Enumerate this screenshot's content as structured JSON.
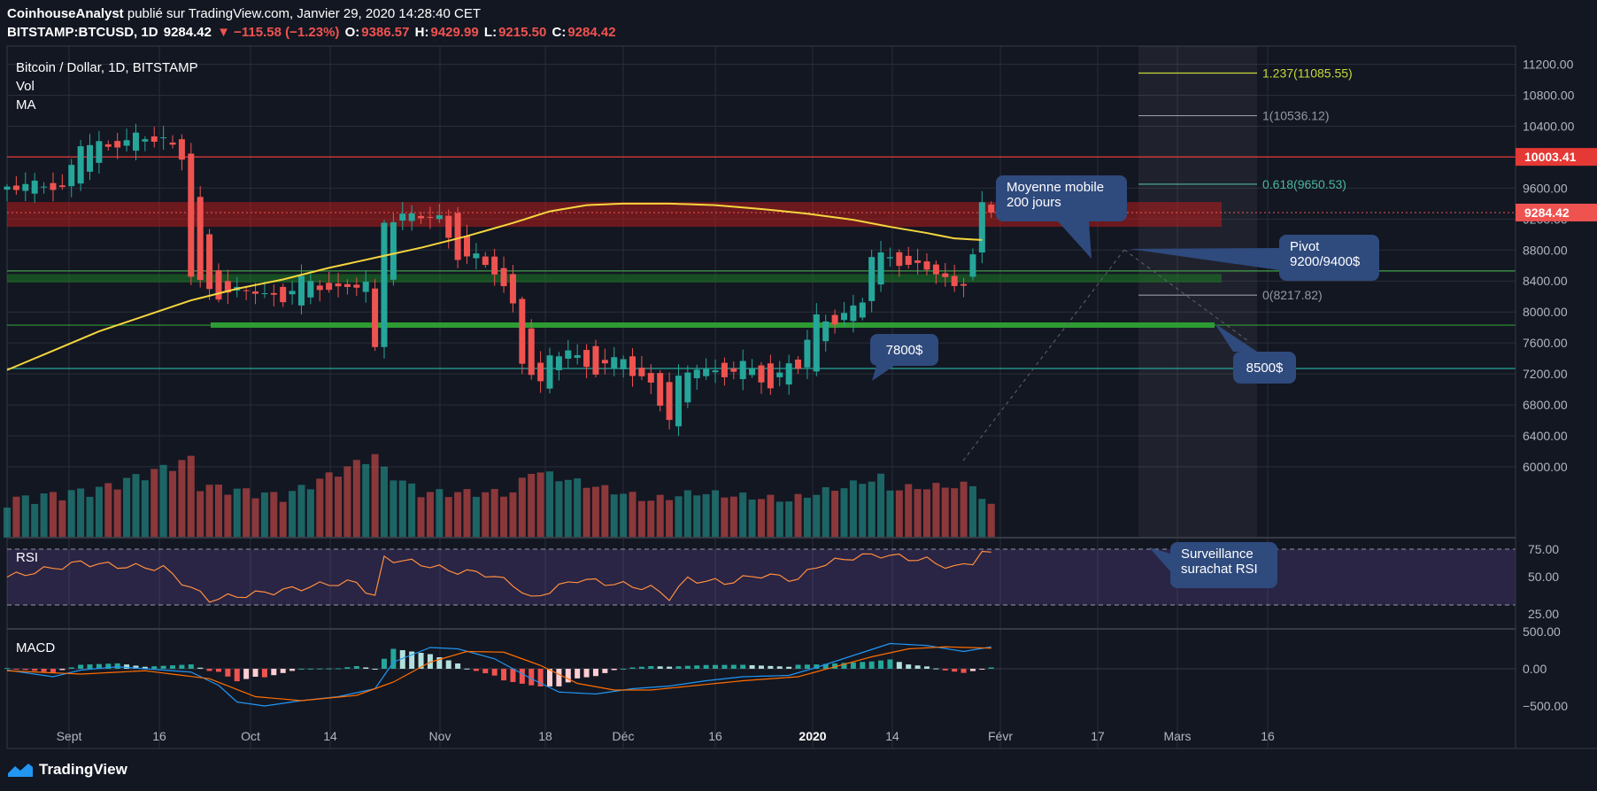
{
  "header": {
    "line1_author": "CoinhouseAnalyst",
    "line1_rest": " publié sur TradingView.com, Janvier 29, 2020 14:28:40 CET",
    "symbol": "BITSTAMP:BTCUSD, 1D",
    "last": "9284.42",
    "change": "▼ −115.58 (−1.23%)",
    "o_label": "O:",
    "o": "9386.57",
    "h_label": "H:",
    "h": "9429.99",
    "l_label": "L:",
    "l": "9215.50",
    "c_label": "C:",
    "c": "9284.42"
  },
  "legend": {
    "title": "Bitcoin / Dollar, 1D, BITSTAMP",
    "vol": "Vol",
    "ma": "MA",
    "rsi": "RSI",
    "macd": "MACD"
  },
  "footer": {
    "brand": "TradingView"
  },
  "colors": {
    "background": "#131722",
    "up": "#26a69a",
    "down": "#ef5350",
    "ma": "#f5d63d",
    "rsi_line": "#ff8f3e",
    "rsi_band": "#7e57c2",
    "macd_line": "#2196f3",
    "signal_line": "#ff6d00",
    "callout": "#2f4a7d"
  },
  "chart_data": {
    "type": "candlestick",
    "title": "Bitcoin / Dollar, 1D, BITSTAMP",
    "x_ticks": [
      "Sept",
      "16",
      "Oct",
      "14",
      "Nov",
      "18",
      "Déc",
      "16",
      "2020",
      "14",
      "Févr",
      "17",
      "Mars",
      "16"
    ],
    "y_ticks": [
      "11200.00",
      "10800.00",
      "10400.00",
      "10000.00",
      "9600.00",
      "9200.00",
      "8800.00",
      "8400.00",
      "8000.00",
      "7600.00",
      "7200.00",
      "6800.00",
      "6400.00",
      "6000.00"
    ],
    "ylim": [
      6000,
      11650
    ],
    "price_path": [
      [
        0,
        9550,
        9850,
        9400,
        9650
      ],
      [
        6,
        9650,
        9500,
        9300,
        9600
      ],
      [
        8,
        9600,
        10300,
        9400,
        10200
      ],
      [
        11,
        10200,
        10350,
        9900,
        10100
      ],
      [
        14,
        10100,
        10400,
        10000,
        10300
      ],
      [
        17,
        10300,
        10150,
        10000,
        10200
      ],
      [
        19,
        10200,
        9900,
        9800,
        10000
      ],
      [
        20,
        10000,
        8600,
        8000,
        8500
      ],
      [
        23,
        8500,
        8050,
        7900,
        8200
      ],
      [
        27,
        8200,
        8500,
        8100,
        8300
      ],
      [
        30,
        8300,
        8200,
        8000,
        8150
      ],
      [
        32,
        8150,
        8700,
        8100,
        8400
      ],
      [
        36,
        8400,
        8150,
        8000,
        8300
      ],
      [
        39,
        8300,
        8200,
        8100,
        8350
      ],
      [
        40,
        8350,
        7400,
        7300,
        7500
      ],
      [
        41,
        7500,
        9500,
        7400,
        9200
      ],
      [
        43,
        9200,
        9300,
        9100,
        9250
      ],
      [
        47,
        9250,
        9400,
        9150,
        9200
      ],
      [
        49,
        9200,
        8800,
        8700,
        8750
      ],
      [
        51,
        8750,
        8800,
        8600,
        8700
      ],
      [
        53,
        8700,
        8450,
        8400,
        8500
      ],
      [
        55,
        8500,
        8150,
        8000,
        8100
      ],
      [
        56,
        8100,
        7600,
        7300,
        7400
      ],
      [
        58,
        7400,
        7150,
        6900,
        7050
      ],
      [
        59,
        7050,
        7500,
        7000,
        7400
      ],
      [
        61,
        7400,
        7600,
        7300,
        7500
      ],
      [
        64,
        7500,
        7300,
        7150,
        7250
      ],
      [
        67,
        7250,
        7500,
        7200,
        7400
      ],
      [
        68,
        7400,
        7300,
        7150,
        7200
      ],
      [
        70,
        7200,
        7050,
        6950,
        7100
      ],
      [
        72,
        7100,
        6650,
        6500,
        6600
      ],
      [
        73,
        6600,
        7150,
        6550,
        7100
      ],
      [
        75,
        7100,
        7500,
        7050,
        7300
      ],
      [
        78,
        7300,
        7150,
        7100,
        7200
      ],
      [
        80,
        7200,
        7350,
        7150,
        7300
      ],
      [
        83,
        7300,
        7000,
        6900,
        7050
      ],
      [
        85,
        7050,
        7400,
        7000,
        7350
      ],
      [
        86,
        7350,
        7400,
        7250,
        7300
      ],
      [
        88,
        7300,
        8000,
        7300,
        7900
      ],
      [
        90,
        7900,
        8100,
        7700,
        7900
      ],
      [
        93,
        7900,
        8100,
        7850,
        8150
      ],
      [
        94,
        8150,
        8800,
        8100,
        8700
      ],
      [
        96,
        8700,
        8900,
        8600,
        8700
      ],
      [
        99,
        8700,
        8900,
        8550,
        8600
      ],
      [
        101,
        8600,
        8650,
        8400,
        8500
      ],
      [
        103,
        8500,
        8350,
        8250,
        8300
      ],
      [
        104,
        8300,
        8450,
        8250,
        8400
      ],
      [
        105,
        8400,
        8900,
        8350,
        8800
      ],
      [
        106,
        8800,
        9400,
        8700,
        9386.57
      ],
      [
        107,
        9386.57,
        9429.99,
        9215.5,
        9284.42
      ]
    ],
    "ma_path": [
      [
        0,
        7250
      ],
      [
        5,
        7500
      ],
      [
        10,
        7750
      ],
      [
        15,
        7950
      ],
      [
        20,
        8150
      ],
      [
        25,
        8300
      ],
      [
        30,
        8420
      ],
      [
        35,
        8570
      ],
      [
        40,
        8700
      ],
      [
        45,
        8830
      ],
      [
        50,
        8980
      ],
      [
        55,
        9150
      ],
      [
        59,
        9300
      ],
      [
        63,
        9380
      ],
      [
        67,
        9400
      ],
      [
        72,
        9400
      ],
      [
        77,
        9380
      ],
      [
        82,
        9330
      ],
      [
        87,
        9270
      ],
      [
        92,
        9190
      ],
      [
        96,
        9100
      ],
      [
        100,
        9020
      ],
      [
        103,
        8950
      ],
      [
        106,
        8930
      ]
    ],
    "volume_path": [
      [
        0,
        40
      ],
      [
        10,
        55
      ],
      [
        20,
        95
      ],
      [
        21,
        60
      ],
      [
        30,
        45
      ],
      [
        40,
        100
      ],
      [
        41,
        80
      ],
      [
        45,
        50
      ],
      [
        55,
        50
      ],
      [
        57,
        80
      ],
      [
        60,
        70
      ],
      [
        70,
        40
      ],
      [
        75,
        50
      ],
      [
        85,
        40
      ],
      [
        90,
        55
      ],
      [
        95,
        70
      ],
      [
        96,
        55
      ],
      [
        105,
        60
      ],
      [
        107,
        30
      ]
    ],
    "rsi_path": [
      [
        0,
        50
      ],
      [
        5,
        58
      ],
      [
        8,
        63
      ],
      [
        12,
        60
      ],
      [
        17,
        58
      ],
      [
        20,
        40
      ],
      [
        22,
        30
      ],
      [
        25,
        33
      ],
      [
        30,
        38
      ],
      [
        35,
        44
      ],
      [
        38,
        45
      ],
      [
        40,
        32
      ],
      [
        41,
        67
      ],
      [
        45,
        62
      ],
      [
        48,
        56
      ],
      [
        52,
        53
      ],
      [
        55,
        44
      ],
      [
        57,
        30
      ],
      [
        59,
        38
      ],
      [
        62,
        48
      ],
      [
        66,
        44
      ],
      [
        70,
        40
      ],
      [
        72,
        32
      ],
      [
        74,
        48
      ],
      [
        78,
        45
      ],
      [
        82,
        52
      ],
      [
        86,
        48
      ],
      [
        88,
        60
      ],
      [
        92,
        68
      ],
      [
        95,
        70
      ],
      [
        100,
        65
      ],
      [
        103,
        58
      ],
      [
        105,
        64
      ],
      [
        106,
        72
      ],
      [
        107,
        70
      ]
    ],
    "rsi_levels": [
      75,
      50,
      25
    ],
    "macd_path": [
      [
        0,
        -20
      ],
      [
        5,
        -120
      ],
      [
        8,
        -20
      ],
      [
        12,
        30
      ],
      [
        17,
        -20
      ],
      [
        20,
        -50
      ],
      [
        23,
        -250
      ],
      [
        25,
        -500
      ],
      [
        28,
        -560
      ],
      [
        32,
        -480
      ],
      [
        36,
        -420
      ],
      [
        40,
        -300
      ],
      [
        42,
        100
      ],
      [
        46,
        320
      ],
      [
        49,
        300
      ],
      [
        53,
        150
      ],
      [
        57,
        -150
      ],
      [
        60,
        -350
      ],
      [
        64,
        -380
      ],
      [
        68,
        -300
      ],
      [
        72,
        -260
      ],
      [
        76,
        -180
      ],
      [
        80,
        -120
      ],
      [
        85,
        -100
      ],
      [
        88,
        20
      ],
      [
        92,
        200
      ],
      [
        96,
        380
      ],
      [
        100,
        350
      ],
      [
        104,
        260
      ],
      [
        107,
        330
      ]
    ],
    "signal_path": [
      [
        0,
        -30
      ],
      [
        8,
        -80
      ],
      [
        15,
        -30
      ],
      [
        22,
        -150
      ],
      [
        27,
        -420
      ],
      [
        32,
        -480
      ],
      [
        38,
        -400
      ],
      [
        42,
        -200
      ],
      [
        46,
        100
      ],
      [
        50,
        260
      ],
      [
        54,
        250
      ],
      [
        58,
        50
      ],
      [
        62,
        -220
      ],
      [
        66,
        -320
      ],
      [
        70,
        -320
      ],
      [
        75,
        -250
      ],
      [
        80,
        -180
      ],
      [
        86,
        -120
      ],
      [
        90,
        30
      ],
      [
        94,
        180
      ],
      [
        98,
        300
      ],
      [
        102,
        330
      ],
      [
        107,
        310
      ]
    ],
    "macd_ticks": [
      "500.00",
      "0.00",
      "−500.00"
    ],
    "price_labels": {
      "resistance": "10003.41",
      "last": "9284.42"
    },
    "fib": [
      {
        "label": "1.237(11085.55)",
        "value": 11085.55,
        "color": "#c5d83b"
      },
      {
        "label": "1(10536.12)",
        "value": 10536.12,
        "color": "#9598a1"
      },
      {
        "label": "0.618(9650.53)",
        "value": 9650.53,
        "color": "#4cb79a"
      },
      {
        "label": "0(8217.82)",
        "value": 8217.82,
        "color": "#9598a1"
      }
    ],
    "zones": [
      {
        "from": 9100,
        "to": 9420,
        "color": "#b71c1c"
      },
      {
        "from": 8380,
        "to": 8490,
        "color": "#1b7a22"
      }
    ],
    "lines": [
      {
        "value": 10003.41,
        "color": "#e53935"
      },
      {
        "value": 8530,
        "color": "#43a047"
      },
      {
        "value": 7830,
        "color": "#2e9b33"
      },
      {
        "value": 7270,
        "color": "#26a69a"
      }
    ],
    "annotations": [
      {
        "id": "callout-ma200",
        "lines": [
          "Moyenne mobile",
          "200 jours"
        ]
      },
      {
        "id": "callout-pivot",
        "lines": [
          "Pivot",
          "9200/9400$"
        ]
      },
      {
        "id": "callout-8500",
        "lines": [
          "8500$"
        ]
      },
      {
        "id": "callout-7800",
        "lines": [
          "7800$"
        ]
      },
      {
        "id": "callout-rsi",
        "lines": [
          "Surveillance",
          "surachat RSI"
        ]
      }
    ]
  }
}
